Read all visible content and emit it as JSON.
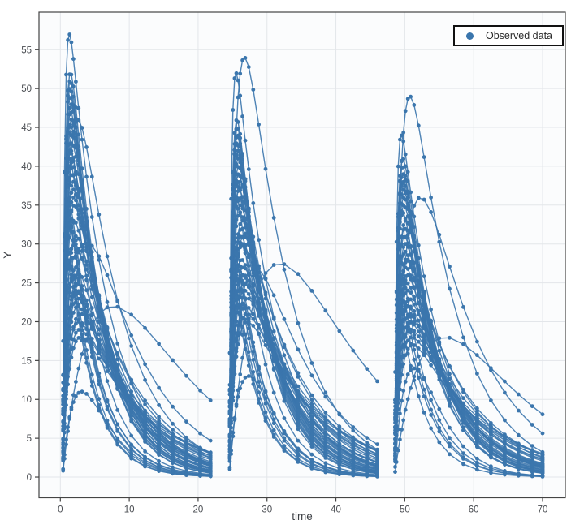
{
  "colors": {
    "series": "#3b76ad",
    "grid": "#e3e6ea",
    "axis_line": "#444444",
    "tick_label": "#4a4d52",
    "axis_title": "#3c3f44",
    "plot_bg": "#fbfcfd",
    "page_bg": "#ffffff",
    "legend_border": "#111111",
    "legend_bg": "#ffffff"
  },
  "chart_data": {
    "type": "line",
    "title": "",
    "xlabel": "time",
    "ylabel": "Y",
    "x_range": [
      -3.1,
      73.3
    ],
    "y_range": [
      -2.66,
      59.83
    ],
    "x_ticks": [
      0,
      10,
      20,
      30,
      40,
      50,
      60,
      70
    ],
    "y_ticks": [
      0,
      5,
      10,
      15,
      20,
      25,
      30,
      35,
      40,
      45,
      50,
      55
    ],
    "grid": true,
    "legend": [
      {
        "name": "Observed data",
        "color": "#3b76ad",
        "marker": "circle"
      }
    ],
    "legend_position": "top-right",
    "marker_mode": "lines+markers",
    "dose_times": [
      0.3,
      24.5,
      48.5
    ],
    "sample_offsets": [
      0.1,
      0.3,
      0.55,
      0.8,
      1.05,
      1.3,
      1.6,
      1.95,
      2.35,
      2.85,
      3.5,
      4.3,
      5.3,
      6.5,
      8,
      10,
      12,
      14,
      16,
      18,
      20,
      21.5
    ],
    "model": "per subject and dose: y(dose_time+off) = cmax * (exp(-ke*off) - exp(-ka*off)) / peak_norm; cmax of 0 means no data for that dose interval",
    "subjects": [
      {
        "ke": 0.16,
        "ka": 1.6,
        "cmax": [
          38,
          35,
          30
        ]
      },
      {
        "ke": 0.22,
        "ka": 2.2,
        "cmax": [
          52,
          44,
          38
        ]
      },
      {
        "ke": 0.12,
        "ka": 1.2,
        "cmax": [
          29,
          31,
          26
        ]
      },
      {
        "ke": 0.19,
        "ka": 1.8,
        "cmax": [
          44,
          40,
          0
        ]
      },
      {
        "ke": 0.26,
        "ka": 2.6,
        "cmax": [
          33,
          28,
          24
        ]
      },
      {
        "ke": 0.14,
        "ka": 1.1,
        "cmax": [
          24,
          26,
          22
        ]
      },
      {
        "ke": 0.21,
        "ka": 2.0,
        "cmax": [
          48,
          42,
          39
        ]
      },
      {
        "ke": 0.11,
        "ka": 0.9,
        "cmax": [
          21,
          23,
          20
        ]
      },
      {
        "ke": 0.24,
        "ka": 2.4,
        "cmax": [
          41,
          36,
          0
        ]
      },
      {
        "ke": 0.17,
        "ka": 1.5,
        "cmax": [
          36,
          38,
          33
        ]
      },
      {
        "ke": 0.28,
        "ka": 2.7,
        "cmax": [
          27,
          22,
          0
        ]
      },
      {
        "ke": 0.13,
        "ka": 1.3,
        "cmax": [
          31,
          33,
          28
        ]
      },
      {
        "ke": 0.2,
        "ka": 1.9,
        "cmax": [
          45,
          41,
          37
        ]
      },
      {
        "ke": 0.15,
        "ka": 1.4,
        "cmax": [
          26,
          28,
          25
        ]
      },
      {
        "ke": 0.23,
        "ka": 2.3,
        "cmax": [
          50,
          43,
          0
        ]
      },
      {
        "ke": 0.1,
        "ka": 1.0,
        "cmax": [
          19,
          21,
          18
        ]
      },
      {
        "ke": 0.18,
        "ka": 1.7,
        "cmax": [
          40,
          37,
          32
        ]
      },
      {
        "ke": 0.25,
        "ka": 2.5,
        "cmax": [
          35,
          29,
          26
        ]
      },
      {
        "ke": 0.12,
        "ka": 1.15,
        "cmax": [
          23,
          25,
          21
        ]
      },
      {
        "ke": 0.21,
        "ka": 2.1,
        "cmax": [
          47,
          44,
          41
        ]
      },
      {
        "ke": 0.16,
        "ka": 1.5,
        "cmax": [
          33,
          30,
          27
        ]
      },
      {
        "ke": 0.27,
        "ka": 2.6,
        "cmax": [
          29,
          24,
          0
        ]
      },
      {
        "ke": 0.14,
        "ka": 1.25,
        "cmax": [
          27,
          30,
          24
        ]
      },
      {
        "ke": 0.19,
        "ka": 1.85,
        "cmax": [
          43,
          39,
          35
        ]
      },
      {
        "ke": 0.11,
        "ka": 1.05,
        "cmax": [
          20,
          22,
          19
        ]
      },
      {
        "ke": 0.22,
        "ka": 2.15,
        "cmax": [
          49,
          45,
          40
        ]
      },
      {
        "ke": 0.17,
        "ka": 1.6,
        "cmax": [
          37,
          34,
          29
        ]
      },
      {
        "ke": 0.24,
        "ka": 2.35,
        "cmax": [
          32,
          27,
          0
        ]
      },
      {
        "ke": 0.13,
        "ka": 1.2,
        "cmax": [
          25,
          27,
          23
        ]
      },
      {
        "ke": 0.2,
        "ka": 1.95,
        "cmax": [
          46,
          42,
          38
        ]
      },
      {
        "ke": 0.15,
        "ka": 1.35,
        "cmax": [
          30,
          32,
          26
        ]
      },
      {
        "ke": 0.26,
        "ka": 2.55,
        "cmax": [
          34,
          26,
          22
        ]
      },
      {
        "ke": 0.12,
        "ka": 1.1,
        "cmax": [
          22,
          24,
          20
        ]
      },
      {
        "ke": 0.18,
        "ka": 1.75,
        "cmax": [
          39,
          36,
          31
        ]
      },
      {
        "ke": 0.23,
        "ka": 2.25,
        "cmax": [
          51,
          46,
          0
        ]
      },
      {
        "ke": 0.1,
        "ka": 0.95,
        "cmax": [
          18,
          20,
          17
        ]
      },
      {
        "ke": 0.21,
        "ka": 2.05,
        "cmax": [
          42,
          38,
          34
        ]
      },
      {
        "ke": 0.16,
        "ka": 1.45,
        "cmax": [
          35,
          31,
          28
        ]
      },
      {
        "ke": 0.28,
        "ka": 2.65,
        "cmax": [
          28,
          23,
          19
        ]
      },
      {
        "ke": 0.14,
        "ka": 1.3,
        "cmax": [
          24,
          26,
          22
        ]
      },
      {
        "ke": 0.18,
        "ka": 3.0,
        "cmax": [
          57,
          52,
          44
        ]
      },
      {
        "ke": 0.15,
        "ka": 1.0,
        "cmax": [
          46,
          54,
          49
        ]
      },
      {
        "ke": 0.3,
        "ka": 0.42,
        "cmax": [
          11,
          13,
          14
        ]
      },
      {
        "ke": 0.12,
        "ka": 0.5,
        "cmax": [
          30,
          27,
          36
        ]
      },
      {
        "ke": 0.1,
        "ka": 0.18,
        "cmax": [
          22,
          27.5,
          18
        ]
      },
      {
        "ke": 0.2,
        "ka": 1.8,
        "cmax": [
          41,
          39,
          36
        ]
      }
    ]
  }
}
